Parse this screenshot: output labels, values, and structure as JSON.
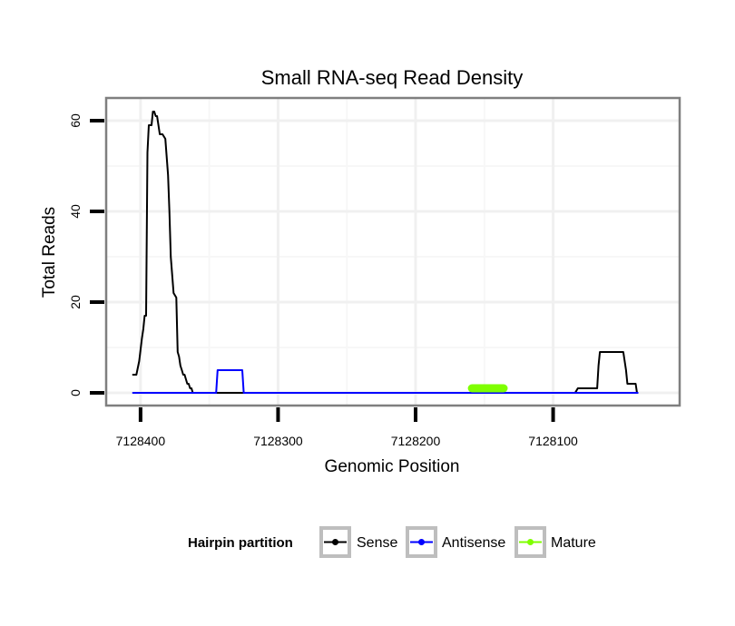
{
  "chart_data": {
    "type": "line",
    "title": "Small RNA-seq Read Density",
    "xlabel": "Genomic Position",
    "ylabel": "Total Reads",
    "x_reversed": true,
    "xlim": [
      7128425,
      7128008
    ],
    "ylim": [
      -2.8,
      65
    ],
    "x_ticks": [
      7128400,
      7128300,
      7128200,
      7128100
    ],
    "x_tick_labels": [
      "7128400",
      "7128300",
      "7128200",
      "7128100"
    ],
    "y_ticks": [
      0,
      20,
      40,
      60
    ],
    "y_tick_labels": [
      "0",
      "20",
      "40",
      "60"
    ],
    "grid": true,
    "legend": {
      "title": "Hairpin partition",
      "position": "bottom",
      "entries": [
        "Sense",
        "Antisense",
        "Mature"
      ]
    },
    "series": [
      {
        "name": "Sense",
        "color": "#000000",
        "x": [
          7128406,
          7128403,
          7128401,
          7128399,
          7128398,
          7128397,
          7128396,
          7128395,
          7128394,
          7128393,
          7128392,
          7128391,
          7128390,
          7128389,
          7128388,
          7128386,
          7128385,
          7128384,
          7128382,
          7128380,
          7128379,
          7128378,
          7128376,
          7128374,
          7128373,
          7128372,
          7128371,
          7128370,
          7128369,
          7128368,
          7128366,
          7128365,
          7128364,
          7128363,
          7128362,
          7128361,
          7128360,
          7128100,
          7128084,
          7128082,
          7128070,
          7128068,
          7128067,
          7128066,
          7128049,
          7128048,
          7128047,
          7128046,
          7128040,
          7128039,
          7128038
        ],
        "y": [
          4,
          4,
          7,
          12,
          14,
          17,
          17,
          53,
          59,
          59,
          59,
          62,
          62,
          61,
          61,
          57,
          57,
          57,
          56,
          48,
          40,
          30,
          22,
          21,
          9,
          8,
          6,
          5,
          4,
          4,
          2,
          2,
          1,
          1,
          0,
          0,
          0,
          0,
          0,
          1,
          1,
          1,
          6,
          9,
          9,
          7,
          5,
          2,
          2,
          0,
          0
        ]
      },
      {
        "name": "Antisense",
        "color": "#0000ff",
        "x": [
          7128406,
          7128345,
          7128344,
          7128326,
          7128325,
          7128038
        ],
        "y": [
          0,
          0,
          5,
          5,
          0,
          0
        ]
      },
      {
        "name": "Mature",
        "color": "#7fff00",
        "x": [
          7128159,
          7128136
        ],
        "y": [
          1,
          1
        ]
      }
    ]
  }
}
